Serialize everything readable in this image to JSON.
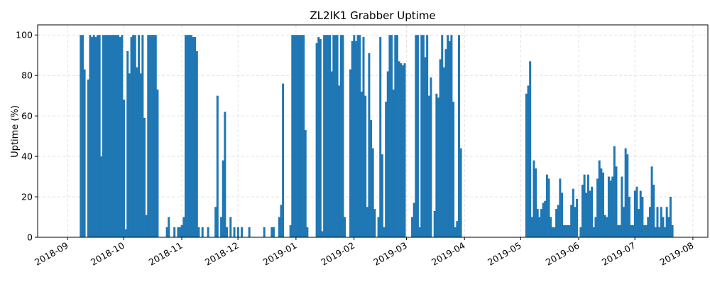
{
  "chart_data": {
    "type": "bar",
    "title": "ZL2IK1 Grabber Uptime",
    "xlabel": "",
    "ylabel": "Uptime (%)",
    "ylim": [
      0,
      105
    ],
    "xlim": [
      "2018-08-16",
      "2019-08-09"
    ],
    "grid": true,
    "y_ticks": [
      0,
      20,
      40,
      60,
      80,
      100
    ],
    "x_ticks": [
      "2018-09",
      "2018-10",
      "2018-11",
      "2018-12",
      "2019-01",
      "2019-02",
      "2019-03",
      "2019-04",
      "2019-05",
      "2019-06",
      "2019-07",
      "2019-08"
    ],
    "bar_color": "#1f77b4",
    "points": [
      [
        "2018-09-08",
        100
      ],
      [
        "2018-09-09",
        100
      ],
      [
        "2018-09-10",
        83
      ],
      [
        "2018-09-12",
        78
      ],
      [
        "2018-09-13",
        100
      ],
      [
        "2018-09-14",
        99
      ],
      [
        "2018-09-15",
        100
      ],
      [
        "2018-09-16",
        99
      ],
      [
        "2018-09-17",
        100
      ],
      [
        "2018-09-18",
        100
      ],
      [
        "2018-09-19",
        40
      ],
      [
        "2018-09-20",
        100
      ],
      [
        "2018-09-21",
        100
      ],
      [
        "2018-09-22",
        100
      ],
      [
        "2018-09-23",
        100
      ],
      [
        "2018-09-24",
        100
      ],
      [
        "2018-09-25",
        100
      ],
      [
        "2018-09-26",
        100
      ],
      [
        "2018-09-27",
        100
      ],
      [
        "2018-09-28",
        100
      ],
      [
        "2018-09-29",
        99
      ],
      [
        "2018-09-30",
        100
      ],
      [
        "2018-10-01",
        68
      ],
      [
        "2018-10-02",
        4
      ],
      [
        "2018-10-03",
        92
      ],
      [
        "2018-10-04",
        81
      ],
      [
        "2018-10-05",
        99
      ],
      [
        "2018-10-06",
        100
      ],
      [
        "2018-10-07",
        100
      ],
      [
        "2018-10-08",
        84
      ],
      [
        "2018-10-09",
        100
      ],
      [
        "2018-10-10",
        81
      ],
      [
        "2018-10-11",
        100
      ],
      [
        "2018-10-12",
        59
      ],
      [
        "2018-10-13",
        11
      ],
      [
        "2018-10-14",
        100
      ],
      [
        "2018-10-15",
        100
      ],
      [
        "2018-10-16",
        100
      ],
      [
        "2018-10-17",
        100
      ],
      [
        "2018-10-18",
        100
      ],
      [
        "2018-10-19",
        73
      ],
      [
        "2018-10-24",
        5
      ],
      [
        "2018-10-25",
        10
      ],
      [
        "2018-10-28",
        5
      ],
      [
        "2018-10-30",
        5
      ],
      [
        "2018-10-31",
        5
      ],
      [
        "2018-11-01",
        6
      ],
      [
        "2018-11-02",
        10
      ],
      [
        "2018-11-03",
        100
      ],
      [
        "2018-11-04",
        100
      ],
      [
        "2018-11-05",
        100
      ],
      [
        "2018-11-06",
        100
      ],
      [
        "2018-11-07",
        99
      ],
      [
        "2018-11-08",
        99
      ],
      [
        "2018-11-09",
        92
      ],
      [
        "2018-11-10",
        5
      ],
      [
        "2018-11-12",
        5
      ],
      [
        "2018-11-15",
        5
      ],
      [
        "2018-11-19",
        15
      ],
      [
        "2018-11-20",
        70
      ],
      [
        "2018-11-22",
        10
      ],
      [
        "2018-11-23",
        38
      ],
      [
        "2018-11-24",
        62
      ],
      [
        "2018-11-25",
        5
      ],
      [
        "2018-11-27",
        10
      ],
      [
        "2018-11-29",
        5
      ],
      [
        "2018-12-01",
        5
      ],
      [
        "2018-12-03",
        5
      ],
      [
        "2018-12-07",
        5
      ],
      [
        "2018-12-15",
        5
      ],
      [
        "2018-12-19",
        5
      ],
      [
        "2018-12-20",
        5
      ],
      [
        "2018-12-23",
        10
      ],
      [
        "2018-12-24",
        16
      ],
      [
        "2018-12-25",
        76
      ],
      [
        "2018-12-29",
        6
      ],
      [
        "2018-12-30",
        100
      ],
      [
        "2018-12-31",
        100
      ],
      [
        "2019-01-01",
        100
      ],
      [
        "2019-01-02",
        100
      ],
      [
        "2019-01-03",
        100
      ],
      [
        "2019-01-04",
        100
      ],
      [
        "2019-01-05",
        100
      ],
      [
        "2019-01-06",
        53
      ],
      [
        "2019-01-07",
        5
      ],
      [
        "2019-01-12",
        96
      ],
      [
        "2019-01-13",
        99
      ],
      [
        "2019-01-14",
        98
      ],
      [
        "2019-01-15",
        3
      ],
      [
        "2019-01-16",
        100
      ],
      [
        "2019-01-17",
        100
      ],
      [
        "2019-01-18",
        100
      ],
      [
        "2019-01-19",
        100
      ],
      [
        "2019-01-20",
        82
      ],
      [
        "2019-01-21",
        100
      ],
      [
        "2019-01-22",
        100
      ],
      [
        "2019-01-23",
        100
      ],
      [
        "2019-01-24",
        75
      ],
      [
        "2019-01-25",
        100
      ],
      [
        "2019-01-26",
        100
      ],
      [
        "2019-01-27",
        10
      ],
      [
        "2019-01-30",
        83
      ],
      [
        "2019-01-31",
        97
      ],
      [
        "2019-02-01",
        100
      ],
      [
        "2019-02-02",
        97
      ],
      [
        "2019-02-03",
        100
      ],
      [
        "2019-02-04",
        100
      ],
      [
        "2019-02-05",
        72
      ],
      [
        "2019-02-06",
        99
      ],
      [
        "2019-02-07",
        70
      ],
      [
        "2019-02-08",
        15
      ],
      [
        "2019-02-09",
        91
      ],
      [
        "2019-02-10",
        58
      ],
      [
        "2019-02-11",
        44
      ],
      [
        "2019-02-12",
        14
      ],
      [
        "2019-02-14",
        10
      ],
      [
        "2019-02-15",
        99
      ],
      [
        "2019-02-16",
        41
      ],
      [
        "2019-02-17",
        5
      ],
      [
        "2019-02-18",
        67
      ],
      [
        "2019-02-19",
        82
      ],
      [
        "2019-02-20",
        100
      ],
      [
        "2019-02-21",
        100
      ],
      [
        "2019-02-22",
        73
      ],
      [
        "2019-02-23",
        100
      ],
      [
        "2019-02-24",
        100
      ],
      [
        "2019-02-25",
        87
      ],
      [
        "2019-02-26",
        86
      ],
      [
        "2019-02-27",
        85
      ],
      [
        "2019-02-28",
        86
      ],
      [
        "2019-03-04",
        10
      ],
      [
        "2019-03-05",
        17
      ],
      [
        "2019-03-06",
        100
      ],
      [
        "2019-03-07",
        100
      ],
      [
        "2019-03-08",
        5
      ],
      [
        "2019-03-09",
        100
      ],
      [
        "2019-03-10",
        100
      ],
      [
        "2019-03-11",
        89
      ],
      [
        "2019-03-12",
        100
      ],
      [
        "2019-03-13",
        70
      ],
      [
        "2019-03-14",
        79
      ],
      [
        "2019-03-16",
        13
      ],
      [
        "2019-03-17",
        71
      ],
      [
        "2019-03-18",
        69
      ],
      [
        "2019-03-19",
        88
      ],
      [
        "2019-03-20",
        100
      ],
      [
        "2019-03-21",
        84
      ],
      [
        "2019-03-22",
        93
      ],
      [
        "2019-03-23",
        100
      ],
      [
        "2019-03-24",
        97
      ],
      [
        "2019-03-25",
        100
      ],
      [
        "2019-03-26",
        67
      ],
      [
        "2019-03-27",
        5
      ],
      [
        "2019-03-28",
        8
      ],
      [
        "2019-03-29",
        100
      ],
      [
        "2019-03-30",
        44
      ],
      [
        "2019-05-04",
        71
      ],
      [
        "2019-05-05",
        75
      ],
      [
        "2019-05-06",
        87
      ],
      [
        "2019-05-07",
        10
      ],
      [
        "2019-05-08",
        38
      ],
      [
        "2019-05-09",
        34
      ],
      [
        "2019-05-10",
        14
      ],
      [
        "2019-05-11",
        10
      ],
      [
        "2019-05-12",
        14
      ],
      [
        "2019-05-13",
        17
      ],
      [
        "2019-05-14",
        18
      ],
      [
        "2019-05-15",
        31
      ],
      [
        "2019-05-16",
        29
      ],
      [
        "2019-05-17",
        10
      ],
      [
        "2019-05-18",
        5
      ],
      [
        "2019-05-19",
        5
      ],
      [
        "2019-05-20",
        14
      ],
      [
        "2019-05-21",
        16
      ],
      [
        "2019-05-22",
        29
      ],
      [
        "2019-05-23",
        22
      ],
      [
        "2019-05-24",
        6
      ],
      [
        "2019-05-25",
        6
      ],
      [
        "2019-05-26",
        6
      ],
      [
        "2019-05-27",
        6
      ],
      [
        "2019-05-28",
        16
      ],
      [
        "2019-05-29",
        24
      ],
      [
        "2019-05-30",
        15
      ],
      [
        "2019-05-31",
        19
      ],
      [
        "2019-06-02",
        5
      ],
      [
        "2019-06-03",
        26
      ],
      [
        "2019-06-04",
        31
      ],
      [
        "2019-06-05",
        22
      ],
      [
        "2019-06-06",
        31
      ],
      [
        "2019-06-07",
        23
      ],
      [
        "2019-06-08",
        25
      ],
      [
        "2019-06-09",
        5
      ],
      [
        "2019-06-10",
        10
      ],
      [
        "2019-06-11",
        29
      ],
      [
        "2019-06-12",
        38
      ],
      [
        "2019-06-13",
        34
      ],
      [
        "2019-06-14",
        32
      ],
      [
        "2019-06-15",
        11
      ],
      [
        "2019-06-16",
        10
      ],
      [
        "2019-06-17",
        30
      ],
      [
        "2019-06-18",
        28
      ],
      [
        "2019-06-19",
        30
      ],
      [
        "2019-06-20",
        45
      ],
      [
        "2019-06-21",
        35
      ],
      [
        "2019-06-22",
        6
      ],
      [
        "2019-06-23",
        6
      ],
      [
        "2019-06-24",
        30
      ],
      [
        "2019-06-25",
        15
      ],
      [
        "2019-06-26",
        44
      ],
      [
        "2019-06-27",
        41
      ],
      [
        "2019-06-28",
        20
      ],
      [
        "2019-06-29",
        6
      ],
      [
        "2019-06-30",
        6
      ],
      [
        "2019-07-01",
        23
      ],
      [
        "2019-07-02",
        25
      ],
      [
        "2019-07-03",
        14
      ],
      [
        "2019-07-04",
        23
      ],
      [
        "2019-07-05",
        20
      ],
      [
        "2019-07-06",
        6
      ],
      [
        "2019-07-07",
        6
      ],
      [
        "2019-07-08",
        10
      ],
      [
        "2019-07-09",
        15
      ],
      [
        "2019-07-10",
        35
      ],
      [
        "2019-07-11",
        26
      ],
      [
        "2019-07-12",
        5
      ],
      [
        "2019-07-13",
        15
      ],
      [
        "2019-07-14",
        5
      ],
      [
        "2019-07-15",
        15
      ],
      [
        "2019-07-16",
        10
      ],
      [
        "2019-07-17",
        5
      ],
      [
        "2019-07-18",
        15
      ],
      [
        "2019-07-19",
        10
      ],
      [
        "2019-07-20",
        20
      ],
      [
        "2019-07-21",
        6
      ]
    ]
  }
}
